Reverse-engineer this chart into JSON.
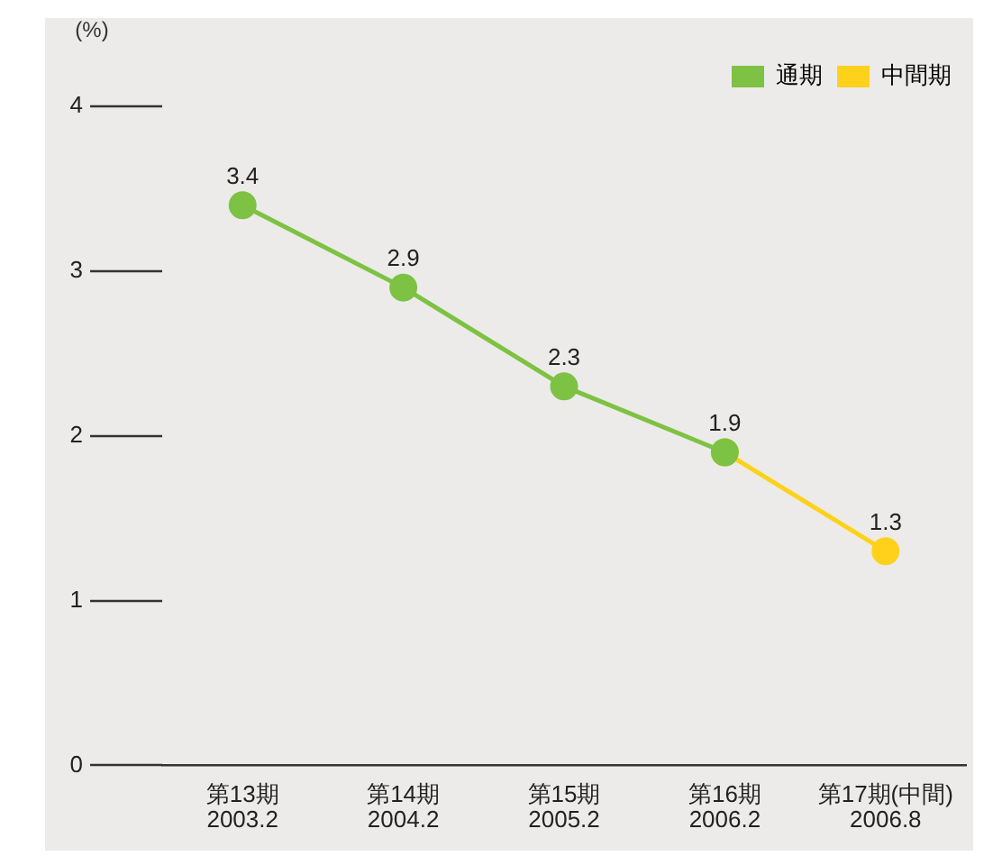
{
  "chart_data": {
    "type": "line",
    "ylabel": "(%)",
    "categories": [
      "第13期\n2003.2",
      "第14期\n2004.2",
      "第15期\n2005.2",
      "第16期\n2006.2",
      "第17期(中間)\n2006.8"
    ],
    "series": [
      {
        "name": "通期",
        "color": "#7dc243",
        "values": [
          3.4,
          2.9,
          2.3,
          1.9,
          null
        ],
        "value_labels": [
          "3.4",
          "2.9",
          "2.3",
          "1.9",
          null
        ]
      },
      {
        "name": "中間期",
        "color": "#ffd11a",
        "values": [
          null,
          null,
          null,
          1.9,
          1.3
        ],
        "value_labels": [
          null,
          null,
          null,
          null,
          "1.3"
        ]
      }
    ],
    "ylim": [
      0,
      4
    ],
    "yticks": [
      0,
      1,
      2,
      3,
      4
    ],
    "marker": "circle",
    "line_style": "solid",
    "legend": "top right",
    "grid": false
  }
}
